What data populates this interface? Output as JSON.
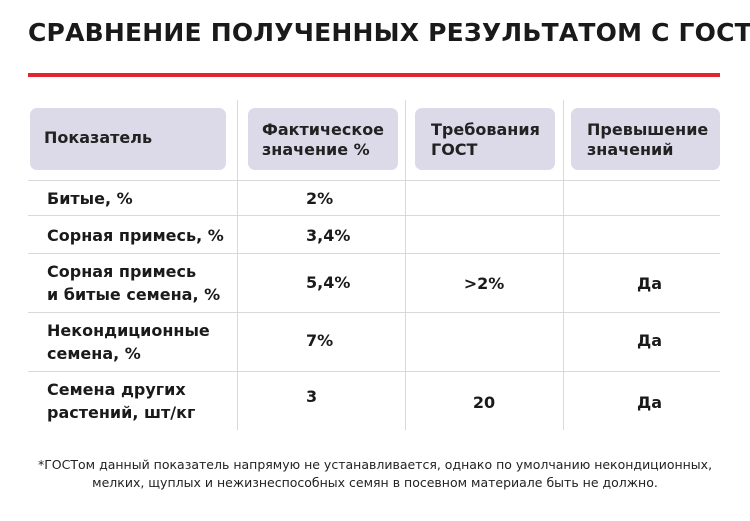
{
  "title": "СРАВНЕНИЕ ПОЛУЧЕННЫХ РЕЗУЛЬТАТОМ С ГОСТ:",
  "colors": {
    "accent": "#e3232f",
    "header_bg": "#dcd9e8"
  },
  "table": {
    "headers": {
      "indicator": "Показатель",
      "actual": [
        "Фактическое",
        "значение %"
      ],
      "gost": [
        "Требования",
        "ГОСТ"
      ],
      "exceed": [
        "Превышение",
        "значений"
      ]
    },
    "rows": [
      {
        "name": [
          "Битые, %"
        ],
        "actual": "2%",
        "gost": "",
        "exceed": ""
      },
      {
        "name": [
          "Сорная примесь, %"
        ],
        "actual": "3,4%",
        "gost": "",
        "exceed": ""
      },
      {
        "name": [
          "Сорная примесь",
          "и битые семена, %"
        ],
        "actual": "5,4%",
        "gost": ">2%",
        "exceed": "Да"
      },
      {
        "name": [
          "Некондиционные",
          "семена, %"
        ],
        "actual": "7%",
        "gost": "",
        "exceed": "Да"
      },
      {
        "name": [
          "Семена других",
          "растений, шт/кг"
        ],
        "actual": "3",
        "gost": "20",
        "exceed": "Да"
      }
    ]
  },
  "footnote": [
    "*ГОСТом данный показатель напрямую не устанавливается, однако по умолчанию некондиционных,",
    "мелких, щуплых и нежизнеспособных семян в посевном материале быть не должно."
  ]
}
